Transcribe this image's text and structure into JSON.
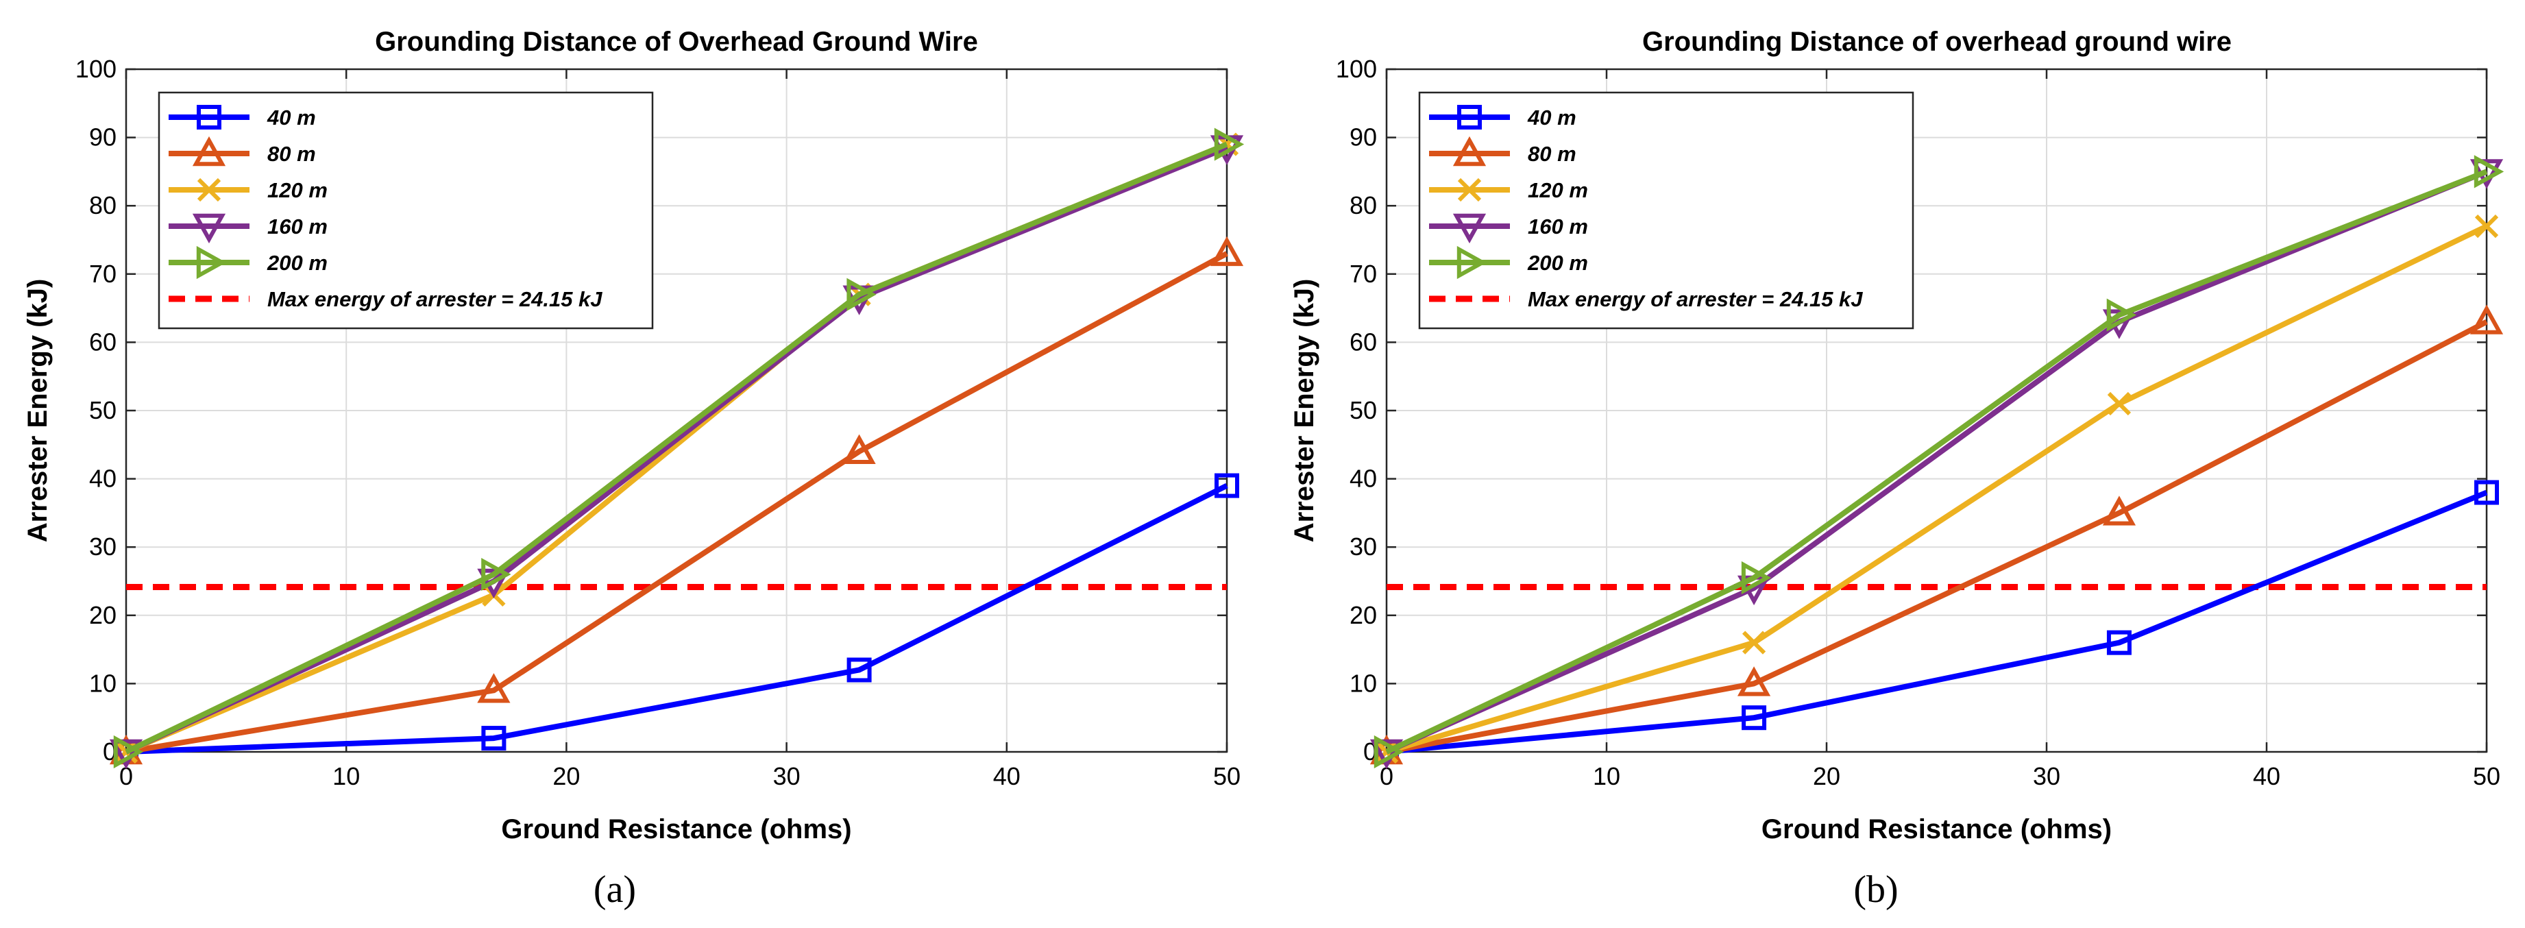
{
  "chart_data": [
    {
      "type": "line",
      "panel_label": "(a)",
      "title": "Grounding Distance of Overhead Ground Wire",
      "xlabel": "Ground Resistance (ohms)",
      "ylabel": "Arrester Energy (kJ)",
      "xlim": [
        0,
        50
      ],
      "ylim": [
        0,
        100
      ],
      "xticks": [
        "0",
        "10",
        "20",
        "30",
        "40",
        "50"
      ],
      "yticks": [
        "0",
        "10",
        "20",
        "30",
        "40",
        "50",
        "60",
        "70",
        "80",
        "90",
        "100"
      ],
      "grid": true,
      "legend_position": "top-left",
      "x": [
        0,
        16.7,
        33.3,
        50
      ],
      "series": [
        {
          "name": "40 m",
          "color": "#0000ff",
          "marker": "square",
          "values": [
            0,
            2,
            12,
            39
          ]
        },
        {
          "name": "80 m",
          "color": "#d95319",
          "marker": "triangle-up",
          "values": [
            0,
            9,
            44,
            73
          ]
        },
        {
          "name": "120 m",
          "color": "#edb120",
          "marker": "x",
          "values": [
            0,
            23,
            67,
            89
          ]
        },
        {
          "name": "160 m",
          "color": "#7e2f8e",
          "marker": "triangle-down",
          "values": [
            0,
            25,
            66.5,
            88.5
          ]
        },
        {
          "name": "200 m",
          "color": "#77ac30",
          "marker": "triangle-right",
          "values": [
            0,
            26,
            67,
            89
          ]
        }
      ],
      "reference_line": {
        "name": "Max energy of arrester = 24.15 kJ",
        "value": 24.15,
        "color": "#ff0000"
      }
    },
    {
      "type": "line",
      "panel_label": "(b)",
      "title": "Grounding Distance of overhead ground wire",
      "xlabel": "Ground Resistance (ohms)",
      "ylabel": "Arrester Energy (kJ)",
      "xlim": [
        0,
        50
      ],
      "ylim": [
        0,
        100
      ],
      "xticks": [
        "0",
        "10",
        "20",
        "30",
        "40",
        "50"
      ],
      "yticks": [
        "0",
        "10",
        "20",
        "30",
        "40",
        "50",
        "60",
        "70",
        "80",
        "90",
        "100"
      ],
      "grid": true,
      "legend_position": "top-left",
      "x": [
        0,
        16.7,
        33.3,
        50
      ],
      "series": [
        {
          "name": "40 m",
          "color": "#0000ff",
          "marker": "square",
          "values": [
            0,
            5,
            16,
            38
          ]
        },
        {
          "name": "80 m",
          "color": "#d95319",
          "marker": "triangle-up",
          "values": [
            0,
            10,
            35,
            63
          ]
        },
        {
          "name": "120 m",
          "color": "#edb120",
          "marker": "x",
          "values": [
            0,
            16,
            51,
            77
          ]
        },
        {
          "name": "160 m",
          "color": "#7e2f8e",
          "marker": "triangle-down",
          "values": [
            0,
            24,
            63,
            85
          ]
        },
        {
          "name": "200 m",
          "color": "#77ac30",
          "marker": "triangle-right",
          "values": [
            0,
            25.5,
            64,
            85
          ]
        }
      ],
      "reference_line": {
        "name": "Max energy of arrester = 24.15 kJ",
        "value": 24.15,
        "color": "#ff0000"
      }
    }
  ]
}
